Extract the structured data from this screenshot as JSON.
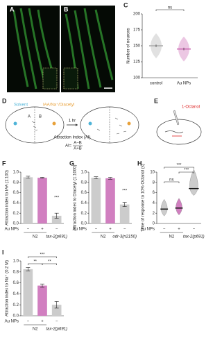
{
  "panel_letters": [
    "A",
    "B",
    "C",
    "D",
    "E",
    "F",
    "G",
    "H",
    "I"
  ],
  "diagram_d": {
    "solvent": "Solvent",
    "attractant": "IAA/Na⁺/Diacetyl",
    "zone_a": "A",
    "zone_b": "B",
    "time": "1 hr",
    "index_name": "Attraction Index (AI)",
    "formula_lhs": "AI=",
    "numerator": "A−B",
    "denominator": "A+B"
  },
  "diagram_e": {
    "odorant": "1-Octanol"
  },
  "chart_data": [
    {
      "type": "mean",
      "ylabel": "Number of neurons",
      "categories": [
        "control",
        "Au NPs"
      ],
      "values": [
        150,
        145
      ],
      "errors": [
        2,
        2
      ],
      "colors": [
        "#aaaaaa",
        "#c85fae"
      ],
      "ylim": [
        100,
        200
      ],
      "yticks": [
        100,
        125,
        150,
        175,
        200
      ],
      "annotations": [
        "ns"
      ]
    },
    {
      "type": "bar",
      "ylabel": "Attraction index to IAA (1:100)",
      "row_label": "Au NPs",
      "categories": [
        "−",
        "+",
        "−"
      ],
      "group_labels": [
        "N2",
        "tax-2(p691)"
      ],
      "values": [
        0.9,
        0.89,
        0.15
      ],
      "errors": [
        0.02,
        0.01,
        0.05
      ],
      "colors": [
        "#cccccc",
        "#d17fc0",
        "#cccccc"
      ],
      "ylim": [
        0,
        1
      ],
      "yticks": [
        {
          "value": 0,
          "label": "0.0"
        },
        {
          "value": 0.2,
          "label": "0.2"
        },
        {
          "value": 0.4,
          "label": "0.4"
        },
        {
          "value": 0.6,
          "label": "0.6"
        },
        {
          "value": 0.8,
          "label": "0.8"
        },
        {
          "value": 1,
          "label": "1.0"
        }
      ],
      "annotations": [
        "***"
      ]
    },
    {
      "type": "bar",
      "ylabel": "Attraction index to Diacetyl (1:1000)",
      "row_label": "Au NPs",
      "categories": [
        "−",
        "+",
        "−"
      ],
      "group_labels": [
        "N2",
        "odr-3(n2150)"
      ],
      "values": [
        0.89,
        0.88,
        0.37
      ],
      "errors": [
        0.02,
        0.02,
        0.04
      ],
      "colors": [
        "#cccccc",
        "#d17fc0",
        "#cccccc"
      ],
      "ylim": [
        0,
        1
      ],
      "yticks": [
        {
          "value": 0,
          "label": "0.0"
        },
        {
          "value": 0.2,
          "label": "0.2"
        },
        {
          "value": 0.4,
          "label": "0.4"
        },
        {
          "value": 0.6,
          "label": "0.6"
        },
        {
          "value": 0.8,
          "label": "0.8"
        },
        {
          "value": 1,
          "label": "1.0"
        }
      ],
      "annotations": [
        "***"
      ]
    },
    {
      "type": "violin",
      "ylabel": "Time of response to 10% Octanol (s)",
      "row_label": "Au NPs",
      "categories": [
        "−",
        "+",
        "−"
      ],
      "group_labels": [
        "N2",
        "tax-2(p691)"
      ],
      "values": [
        2.8,
        3,
        6.8
      ],
      "colors": [
        "#cccccc",
        "#d17fc0",
        "#cccccc"
      ],
      "ylim": [
        0,
        10
      ],
      "yticks": [
        0,
        2,
        4,
        6,
        8,
        10
      ],
      "annotations": [
        "ns",
        "***",
        "***"
      ]
    },
    {
      "type": "bar",
      "ylabel": "Attraction index to Na⁺ (0.2 M)",
      "row_label": "Au NPs",
      "categories": [
        "−",
        "+",
        "−"
      ],
      "group_labels": [
        "N2",
        "tax-2(p691)"
      ],
      "values": [
        0.85,
        0.55,
        0.2
      ],
      "errors": [
        0.03,
        0.03,
        0.06
      ],
      "colors": [
        "#cccccc",
        "#d17fc0",
        "#cccccc"
      ],
      "ylim": [
        0,
        1
      ],
      "yticks": [
        {
          "value": 0,
          "label": "0.0"
        },
        {
          "value": 0.2,
          "label": "0.2"
        },
        {
          "value": 0.4,
          "label": "0.4"
        },
        {
          "value": 0.6,
          "label": "0.6"
        },
        {
          "value": 0.8,
          "label": "0.8"
        },
        {
          "value": 1,
          "label": "1.0"
        }
      ],
      "annotations": [
        "**",
        "**",
        "***"
      ]
    }
  ]
}
